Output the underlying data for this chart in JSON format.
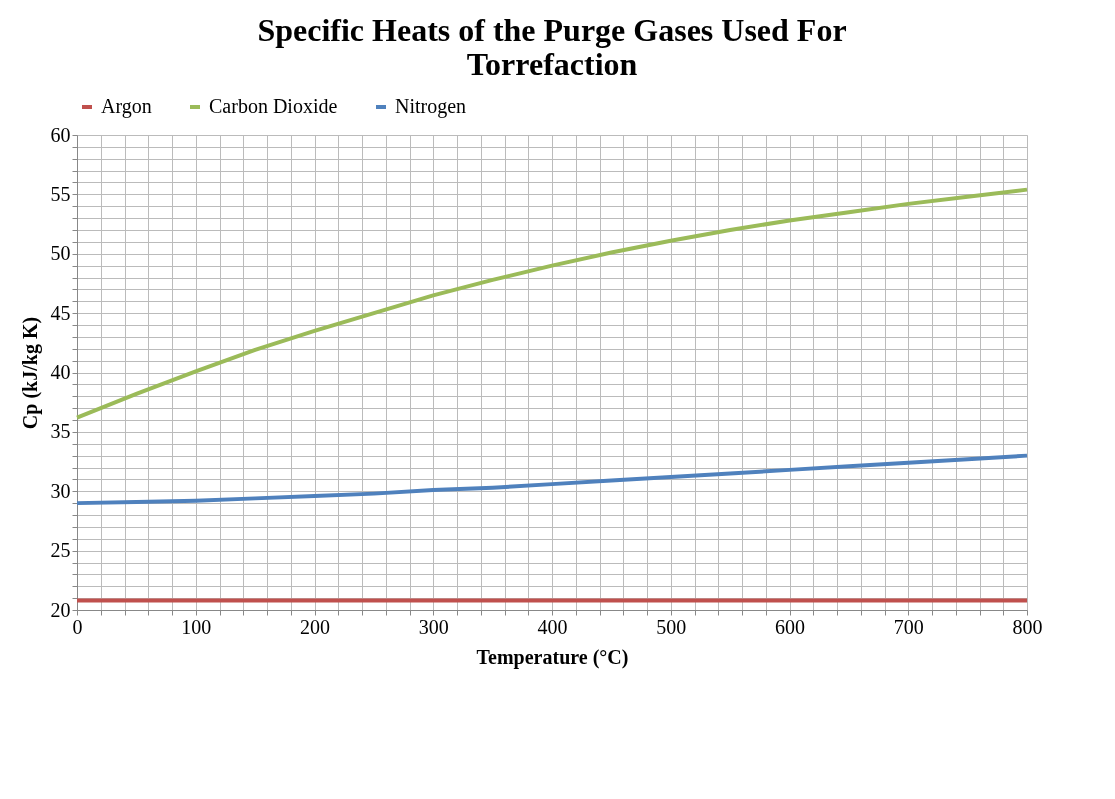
{
  "chart_data": {
    "type": "line",
    "title": [
      "Specific Heats of the Purge Gases Used For",
      "Torrefaction"
    ],
    "xlabel": "Temperature (°C)",
    "ylabel": "Cp (kJ/kg K)",
    "x": [
      0,
      50,
      100,
      150,
      200,
      250,
      300,
      350,
      400,
      450,
      500,
      550,
      600,
      650,
      700,
      750,
      800
    ],
    "series": [
      {
        "name": "Argon",
        "color": "#c0504d",
        "values": [
          20.8,
          20.8,
          20.8,
          20.8,
          20.8,
          20.8,
          20.8,
          20.8,
          20.8,
          20.8,
          20.8,
          20.8,
          20.8,
          20.8,
          20.8,
          20.8,
          20.8
        ]
      },
      {
        "name": "Carbon Dioxide",
        "color": "#9bbb59",
        "values": [
          36.2,
          38.2,
          40.1,
          41.9,
          43.5,
          45.0,
          46.5,
          47.8,
          49.0,
          50.1,
          51.1,
          52.0,
          52.8,
          53.5,
          54.2,
          54.8,
          55.4
        ]
      },
      {
        "name": "Nitrogen",
        "color": "#4f81bd",
        "values": [
          29.0,
          29.1,
          29.2,
          29.4,
          29.6,
          29.8,
          30.1,
          30.3,
          30.6,
          30.9,
          31.2,
          31.5,
          31.8,
          32.1,
          32.4,
          32.7,
          33.0
        ]
      }
    ],
    "xlim": [
      0,
      800
    ],
    "ylim": [
      20,
      60
    ],
    "xticks": [
      0,
      {
        "value": 20,
        "label": null
      },
      {
        "value": 40,
        "label": null
      },
      {
        "value": 60,
        "label": null
      },
      {
        "value": 80,
        "label": null
      },
      100,
      {
        "value": 120,
        "label": null
      },
      {
        "value": 140,
        "label": null
      },
      {
        "value": 160,
        "label": null
      },
      {
        "value": 180,
        "label": null
      },
      200,
      {
        "value": 220,
        "label": null
      },
      {
        "value": 240,
        "label": null
      },
      {
        "value": 260,
        "label": null
      },
      {
        "value": 280,
        "label": null
      },
      300,
      {
        "value": 320,
        "label": null
      },
      {
        "value": 340,
        "label": null
      },
      {
        "value": 360,
        "label": null
      },
      {
        "value": 380,
        "label": null
      },
      400,
      {
        "value": 420,
        "label": null
      },
      {
        "value": 440,
        "label": null
      },
      {
        "value": 460,
        "label": null
      },
      {
        "value": 480,
        "label": null
      },
      500,
      {
        "value": 520,
        "label": null
      },
      {
        "value": 540,
        "label": null
      },
      {
        "value": 560,
        "label": null
      },
      {
        "value": 580,
        "label": null
      },
      600,
      {
        "value": 620,
        "label": null
      },
      {
        "value": 640,
        "label": null
      },
      {
        "value": 660,
        "label": null
      },
      {
        "value": 680,
        "label": null
      },
      700,
      {
        "value": 720,
        "label": null
      },
      {
        "value": 740,
        "label": null
      },
      {
        "value": 760,
        "label": null
      },
      {
        "value": 780,
        "label": null
      },
      800
    ],
    "yticks": [
      20,
      {
        "value": 21,
        "label": null
      },
      {
        "value": 22,
        "label": null
      },
      {
        "value": 23,
        "label": null
      },
      {
        "value": 24,
        "label": null
      },
      25,
      {
        "value": 26,
        "label": null
      },
      {
        "value": 27,
        "label": null
      },
      {
        "value": 28,
        "label": null
      },
      {
        "value": 29,
        "label": null
      },
      30,
      {
        "value": 31,
        "label": null
      },
      {
        "value": 32,
        "label": null
      },
      {
        "value": 33,
        "label": null
      },
      {
        "value": 34,
        "label": null
      },
      35,
      {
        "value": 36,
        "label": null
      },
      {
        "value": 37,
        "label": null
      },
      {
        "value": 38,
        "label": null
      },
      {
        "value": 39,
        "label": null
      },
      40,
      {
        "value": 41,
        "label": null
      },
      {
        "value": 42,
        "label": null
      },
      {
        "value": 43,
        "label": null
      },
      {
        "value": 44,
        "label": null
      },
      45,
      {
        "value": 46,
        "label": null
      },
      {
        "value": 47,
        "label": null
      },
      {
        "value": 48,
        "label": null
      },
      {
        "value": 49,
        "label": null
      },
      50,
      {
        "value": 51,
        "label": null
      },
      {
        "value": 52,
        "label": null
      },
      {
        "value": 53,
        "label": null
      },
      {
        "value": 54,
        "label": null
      },
      55,
      {
        "value": 56,
        "label": null
      },
      {
        "value": 57,
        "label": null
      },
      {
        "value": 58,
        "label": null
      },
      {
        "value": 59,
        "label": null
      },
      60
    ],
    "grid": true,
    "legend": "top",
    "marker": "none",
    "line_style": "solid"
  }
}
